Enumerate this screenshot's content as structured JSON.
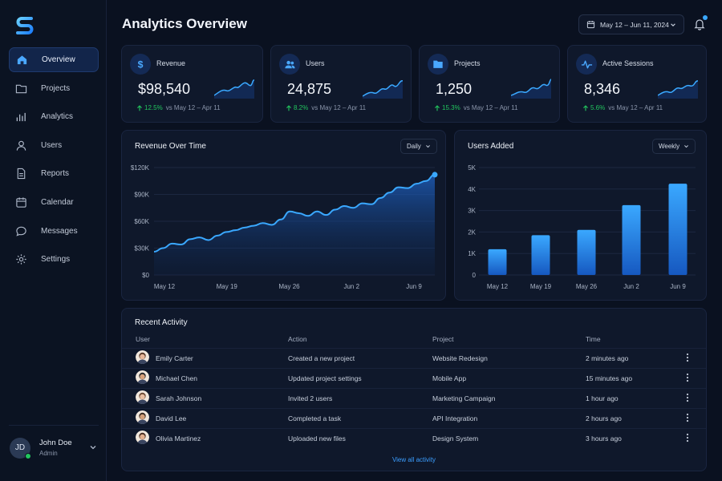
{
  "sidebar": {
    "items": [
      {
        "label": "Overview",
        "icon": "home-icon",
        "active": true
      },
      {
        "label": "Projects",
        "icon": "folder-icon"
      },
      {
        "label": "Analytics",
        "icon": "bar-chart-icon"
      },
      {
        "label": "Users",
        "icon": "user-icon"
      },
      {
        "label": "Reports",
        "icon": "document-icon"
      },
      {
        "label": "Calendar",
        "icon": "calendar-icon"
      },
      {
        "label": "Messages",
        "icon": "chat-icon"
      },
      {
        "label": "Settings",
        "icon": "gear-icon"
      }
    ],
    "user": {
      "initials": "JD",
      "name": "John Doe",
      "role": "Admin"
    }
  },
  "header": {
    "title": "Analytics Overview",
    "date_range": "May 12 – Jun 11, 2024"
  },
  "stats": [
    {
      "label": "Revenue",
      "value": "$98,540",
      "delta": "12.5%",
      "compare": "vs May 12 – Apr 11",
      "icon": "dollar-icon"
    },
    {
      "label": "Users",
      "value": "24,875",
      "delta": "8.2%",
      "compare": "vs May 12 – Apr 11",
      "icon": "users-icon"
    },
    {
      "label": "Projects",
      "value": "1,250",
      "delta": "15.3%",
      "compare": "vs May 12 – Apr 11",
      "icon": "folder-icon"
    },
    {
      "label": "Active Sessions",
      "value": "8,346",
      "delta": "5.6%",
      "compare": "vs May 12 – Apr 11",
      "icon": "activity-icon"
    }
  ],
  "revenue_chart": {
    "title": "Revenue Over Time",
    "dropdown": "Daily"
  },
  "users_chart": {
    "title": "Users Added",
    "dropdown": "Weekly"
  },
  "chart_data": [
    {
      "type": "area",
      "title": "Revenue Over Time",
      "x_ticks": [
        "May 12",
        "May 19",
        "May 26",
        "Jun 2",
        "Jun 9"
      ],
      "y_ticks": [
        "$0",
        "$30K",
        "$60K",
        "$90K",
        "$120K"
      ],
      "ylim": [
        0,
        120000
      ],
      "values": [
        26000,
        30000,
        35000,
        34000,
        40000,
        42000,
        39000,
        44000,
        48000,
        50000,
        53000,
        55000,
        58000,
        56000,
        62000,
        71000,
        69000,
        66000,
        71000,
        67000,
        73000,
        77000,
        75000,
        80000,
        79000,
        86000,
        92000,
        98000,
        97000,
        102000,
        105000,
        112000
      ]
    },
    {
      "type": "bar",
      "title": "Users Added",
      "categories": [
        "May 12",
        "May 19",
        "May 26",
        "Jun 2",
        "Jun 9"
      ],
      "y_ticks": [
        "0",
        "1K",
        "2K",
        "3K",
        "4K",
        "5K"
      ],
      "ylim": [
        0,
        5000
      ],
      "values": [
        1200,
        1850,
        2100,
        3250,
        4250
      ]
    }
  ],
  "activity": {
    "title": "Recent Activity",
    "columns": [
      "User",
      "Action",
      "Project",
      "Time"
    ],
    "rows": [
      {
        "user": "Emily Carter",
        "action": "Created a new project",
        "project": "Website Redesign",
        "time": "2 minutes ago"
      },
      {
        "user": "Michael Chen",
        "action": "Updated project settings",
        "project": "Mobile App",
        "time": "15 minutes ago"
      },
      {
        "user": "Sarah Johnson",
        "action": "Invited 2 users",
        "project": "Marketing Campaign",
        "time": "1 hour ago"
      },
      {
        "user": "David Lee",
        "action": "Completed a task",
        "project": "API Integration",
        "time": "2 hours ago"
      },
      {
        "user": "Olivia Martinez",
        "action": "Uploaded new files",
        "project": "Design System",
        "time": "3 hours ago"
      }
    ],
    "view_all": "View all activity"
  },
  "colors": {
    "accent": "#3aa8ff",
    "positive": "#22c55e",
    "card": "#0f182b",
    "background": "#0a1120"
  }
}
